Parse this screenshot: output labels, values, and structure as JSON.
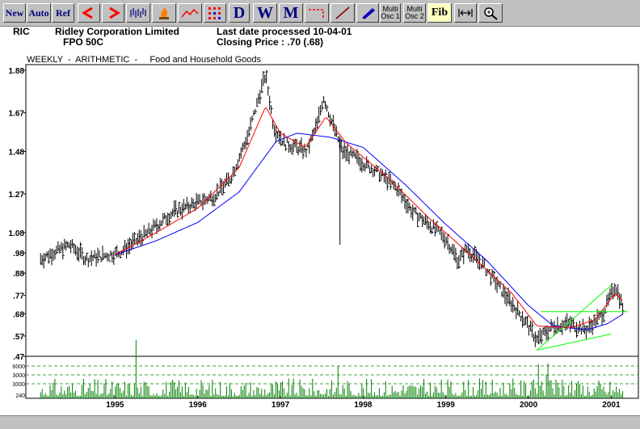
{
  "toolbar": {
    "new": "New",
    "auto": "Auto",
    "ref": "Ref",
    "d": "D",
    "w": "W",
    "m": "M",
    "multi1a": "Multi",
    "multi1b": "Osc 1",
    "multi2a": "Multi",
    "multi2b": "Osc 2",
    "fib": "Fib"
  },
  "header": {
    "code": "RIC",
    "company": "Ridley Corporation Limited",
    "security": "FPO 50C",
    "last_date": "Last date processed 10-04-01",
    "closing": "Closing Price : .70  (.68)"
  },
  "subtitle": "WEEKLY  -  ARITHMETIC  -     Food and Household Goods",
  "colors": {
    "price": "#000000",
    "ma_short": "#ff0000",
    "ma_long": "#0000ff",
    "trend": "#00ff00",
    "volume": "#008000",
    "grid": "#008000"
  },
  "chart_data": {
    "type": "bar",
    "subtype": "ohlc-weekly-with-moving-averages-and-volume",
    "title": "Ridley Corporation Limited",
    "scale": "arithmetic",
    "x_ticks": [
      "1995",
      "1996",
      "1997",
      "1998",
      "1999",
      "2000",
      "2001"
    ],
    "y_ticks": [
      ".47",
      ".57",
      ".68",
      ".77",
      ".88",
      ".98",
      "1.08",
      "1.27",
      "1.48",
      "1.67",
      "1.88"
    ],
    "ylim": [
      0.47,
      1.88
    ],
    "volume_ticks": [
      "6000",
      "3000",
      "3000",
      "240"
    ],
    "price_anchors": [
      [
        1994.1,
        0.95
      ],
      [
        1994.45,
        1.02
      ],
      [
        1994.65,
        0.95
      ],
      [
        1995.05,
        0.98
      ],
      [
        1995.4,
        1.08
      ],
      [
        1995.7,
        1.18
      ],
      [
        1995.95,
        1.22
      ],
      [
        1996.2,
        1.26
      ],
      [
        1996.4,
        1.35
      ],
      [
        1996.6,
        1.55
      ],
      [
        1996.72,
        1.72
      ],
      [
        1996.82,
        1.86
      ],
      [
        1996.92,
        1.6
      ],
      [
        1997.05,
        1.52
      ],
      [
        1997.2,
        1.5
      ],
      [
        1997.32,
        1.48
      ],
      [
        1997.45,
        1.62
      ],
      [
        1997.52,
        1.75
      ],
      [
        1997.6,
        1.65
      ],
      [
        1997.75,
        1.48
      ],
      [
        1997.9,
        1.45
      ],
      [
        1998.2,
        1.37
      ],
      [
        1998.4,
        1.3
      ],
      [
        1998.6,
        1.18
      ],
      [
        1998.8,
        1.12
      ],
      [
        1999.0,
        1.05
      ],
      [
        1999.15,
        0.94
      ],
      [
        1999.25,
        1.0
      ],
      [
        1999.45,
        0.92
      ],
      [
        1999.7,
        0.78
      ],
      [
        1999.95,
        0.65
      ],
      [
        2000.1,
        0.55
      ],
      [
        2000.3,
        0.62
      ],
      [
        2000.5,
        0.63
      ],
      [
        2000.7,
        0.6
      ],
      [
        2000.9,
        0.68
      ],
      [
        2001.05,
        0.82
      ],
      [
        2001.15,
        0.7
      ]
    ],
    "ma_short_anchors": [
      [
        1995.0,
        0.97
      ],
      [
        1995.5,
        1.08
      ],
      [
        1996.0,
        1.2
      ],
      [
        1996.5,
        1.4
      ],
      [
        1996.82,
        1.7
      ],
      [
        1997.0,
        1.57
      ],
      [
        1997.3,
        1.5
      ],
      [
        1997.55,
        1.65
      ],
      [
        1997.8,
        1.52
      ],
      [
        1998.3,
        1.35
      ],
      [
        1998.8,
        1.15
      ],
      [
        1999.3,
        0.97
      ],
      [
        1999.8,
        0.78
      ],
      [
        2000.1,
        0.62
      ],
      [
        2000.5,
        0.61
      ],
      [
        2000.8,
        0.65
      ],
      [
        2001.05,
        0.78
      ],
      [
        2001.15,
        0.74
      ]
    ],
    "ma_long_anchors": [
      [
        1995.0,
        0.97
      ],
      [
        1995.5,
        1.04
      ],
      [
        1996.0,
        1.13
      ],
      [
        1996.5,
        1.28
      ],
      [
        1996.95,
        1.53
      ],
      [
        1997.2,
        1.57
      ],
      [
        1997.6,
        1.55
      ],
      [
        1998.0,
        1.5
      ],
      [
        1998.5,
        1.32
      ],
      [
        1999.0,
        1.12
      ],
      [
        1999.5,
        0.94
      ],
      [
        2000.0,
        0.72
      ],
      [
        2000.3,
        0.62
      ],
      [
        2000.7,
        0.6
      ],
      [
        2000.95,
        0.63
      ],
      [
        2001.15,
        0.68
      ]
    ],
    "trendlines": [
      {
        "from": [
          2000.1,
          0.5
        ],
        "to": [
          2001.0,
          0.82
        ]
      },
      {
        "from": [
          2000.1,
          0.5
        ],
        "to": [
          2001.0,
          0.58
        ]
      },
      {
        "from": [
          2000.15,
          0.69
        ],
        "to": [
          2001.2,
          0.69
        ]
      }
    ]
  }
}
